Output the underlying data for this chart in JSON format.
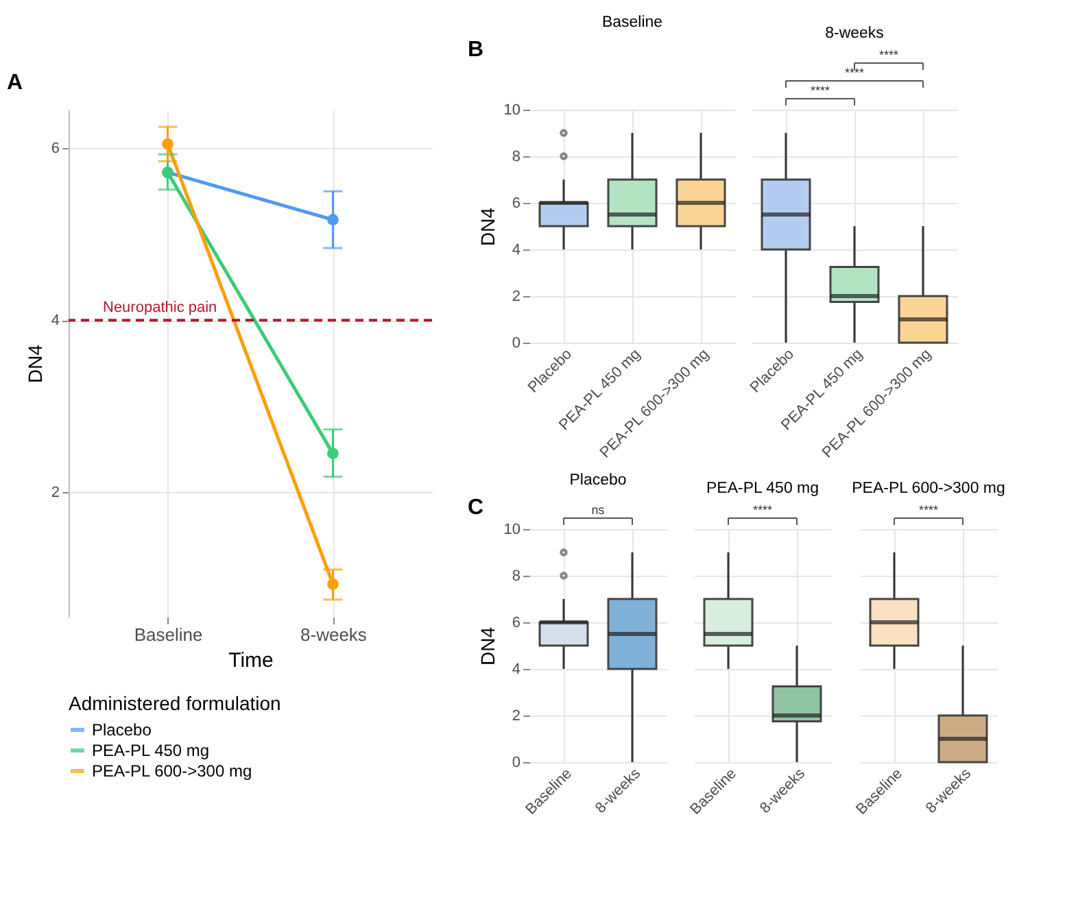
{
  "chart_data": [
    {
      "type": "line",
      "title": "A",
      "categories": [
        "Baseline",
        "8-weeks"
      ],
      "xlabel": "Time",
      "ylabel": "DN4",
      "legend_title": "Administered formulation",
      "legend": "bottom",
      "marker": "circle",
      "line_style": "solid",
      "grid": true,
      "ylim": [
        0.55,
        6.45
      ],
      "yticks": [
        2,
        4,
        6
      ],
      "series": [
        {
          "name": "Placebo",
          "color": "#4e9af1",
          "values": [
            5.72,
            5.17
          ],
          "errors": [
            null,
            [
              4.84,
              5.5
            ]
          ]
        },
        {
          "name": "PEA-PL 450 mg",
          "color": "#3ccb78",
          "values": [
            5.72,
            2.45
          ],
          "errors": [
            [
              5.52,
              5.93
            ],
            [
              2.18,
              2.73
            ]
          ]
        },
        {
          "name": "PEA-PL 600->300 mg",
          "color": "#fb9f0d",
          "values": [
            6.05,
            0.93
          ],
          "errors": [
            [
              5.85,
              6.25
            ],
            [
              0.75,
              1.1
            ]
          ]
        }
      ],
      "ref_lines": [
        {
          "axis": "y",
          "value": 4,
          "label": "Neuropathic pain",
          "color": "#b2182b",
          "line_style": "dashed"
        }
      ]
    },
    {
      "type": "box",
      "title": "B",
      "subtitle": "Baseline",
      "ylabel": "DN4",
      "categories": [
        "Placebo",
        "PEA-PL 450 mg",
        "PEA-PL 600->300 mg"
      ],
      "grid": true,
      "ylim": [
        0,
        10
      ],
      "yticks": [
        0,
        2,
        4,
        6,
        8,
        10
      ],
      "colors": [
        "#b3cdf0",
        "#b3e4c2",
        "#fcd596"
      ],
      "boxes": [
        {
          "low": 4,
          "q1": 5,
          "median": 6,
          "q3": 6,
          "high": 7,
          "outliers": [
            8,
            9
          ]
        },
        {
          "low": 4,
          "q1": 5,
          "median": 5.5,
          "q3": 7,
          "high": 9
        },
        {
          "low": 4,
          "q1": 5,
          "median": 6,
          "q3": 7,
          "high": 9
        }
      ]
    },
    {
      "type": "box",
      "subtitle": "8-weeks",
      "categories": [
        "Placebo",
        "PEA-PL 450 mg",
        "PEA-PL 600->300 mg"
      ],
      "grid": true,
      "tick_labels": "x",
      "ylim": [
        0,
        10
      ],
      "yticks": [
        0,
        2,
        4,
        6,
        8,
        10
      ],
      "colors": [
        "#b3cdf0",
        "#b3e4c2",
        "#fcd596"
      ],
      "boxes": [
        {
          "low": 0,
          "q1": 4,
          "median": 5.5,
          "q3": 7,
          "high": 9
        },
        {
          "low": 0,
          "q1": 1.75,
          "median": 2,
          "q3": 3.25,
          "high": 5
        },
        {
          "low": 0,
          "q1": 0,
          "median": 1,
          "q3": 2,
          "high": 5
        }
      ],
      "annotations": [
        "****",
        "****",
        "****"
      ]
    },
    {
      "type": "box",
      "title": "C",
      "subtitle": "Placebo",
      "ylabel": "DN4",
      "categories": [
        "Baseline",
        "8-weeks"
      ],
      "grid": true,
      "ylim": [
        0,
        10
      ],
      "yticks": [
        0,
        2,
        4,
        6,
        8,
        10
      ],
      "colors": [
        "#d5dff0",
        "#80b1d8"
      ],
      "boxes": [
        {
          "low": 4,
          "q1": 5,
          "median": 6,
          "q3": 6,
          "high": 7,
          "outliers": [
            8,
            9
          ]
        },
        {
          "low": 0,
          "q1": 4,
          "median": 5.5,
          "q3": 7,
          "high": 9
        }
      ],
      "annotations": [
        "ns"
      ]
    },
    {
      "type": "box",
      "subtitle": "PEA-PL 450 mg",
      "categories": [
        "Baseline",
        "8-weeks"
      ],
      "grid": true,
      "tick_labels": "x",
      "ylim": [
        0,
        10
      ],
      "yticks": [
        0,
        2,
        4,
        6,
        8,
        10
      ],
      "colors": [
        "#d8eedf",
        "#90c5a2"
      ],
      "boxes": [
        {
          "low": 4,
          "q1": 5,
          "median": 5.5,
          "q3": 7,
          "high": 9
        },
        {
          "low": 0,
          "q1": 1.75,
          "median": 2,
          "q3": 3.25,
          "high": 5
        }
      ],
      "annotations": [
        "****"
      ]
    },
    {
      "type": "box",
      "subtitle": "PEA-PL 600->300 mg",
      "categories": [
        "Baseline",
        "8-weeks"
      ],
      "grid": true,
      "tick_labels": "x",
      "ylim": [
        0,
        10
      ],
      "yticks": [
        0,
        2,
        4,
        6,
        8,
        10
      ],
      "colors": [
        "#fde1c2",
        "#cdab84"
      ],
      "boxes": [
        {
          "low": 4,
          "q1": 5,
          "median": 6,
          "q3": 7,
          "high": 9
        },
        {
          "low": 0,
          "q1": 0,
          "median": 1,
          "q3": 2,
          "high": 5
        }
      ],
      "annotations": [
        "****"
      ]
    }
  ]
}
